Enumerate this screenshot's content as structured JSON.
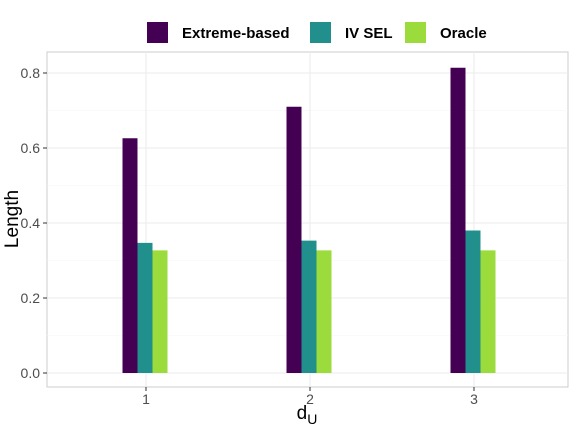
{
  "chart_data": {
    "type": "bar",
    "categories": [
      "1",
      "2",
      "3"
    ],
    "series": [
      {
        "name": "Extreme-based",
        "values": [
          0.626,
          0.71,
          0.814
        ],
        "color": "#440154"
      },
      {
        "name": "IV SEL",
        "values": [
          0.347,
          0.353,
          0.38
        ],
        "color": "#21908C"
      },
      {
        "name": "Oracle",
        "values": [
          0.327,
          0.327,
          0.327
        ],
        "color": "#9BDB3C"
      }
    ],
    "xlabel": "d",
    "xlabel_subscript": "U",
    "ylabel": "Length",
    "ylim": [
      0,
      0.83
    ],
    "yticks": [
      "0.0",
      "0.2",
      "0.4",
      "0.6",
      "0.8"
    ],
    "grid": true,
    "legend_position": "top"
  }
}
